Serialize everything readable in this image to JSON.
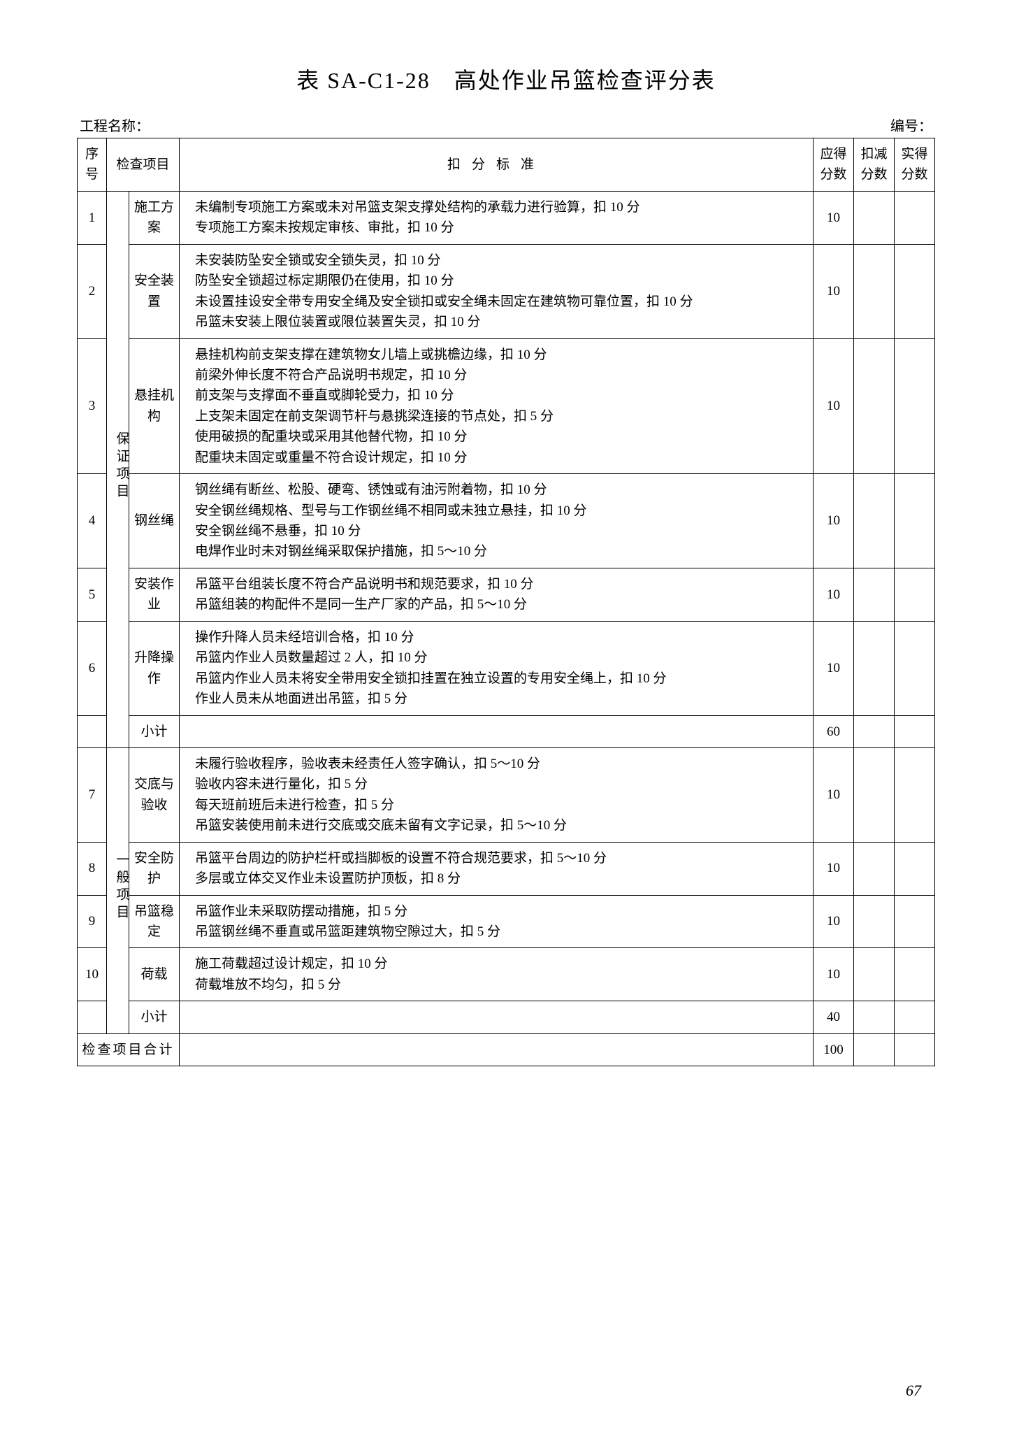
{
  "title": "表 SA-C1-28　高处作业吊篮检查评分表",
  "meta": {
    "project_label": "工程名称：",
    "number_label": "编号："
  },
  "headers": {
    "seq": "序号",
    "check_item": "检查项目",
    "criteria": "扣分标准",
    "max_score": "应得分数",
    "deduct": "扣减分数",
    "actual": "实得分数"
  },
  "group1_label": "保证项目",
  "group2_label": "一般项目",
  "rows": [
    {
      "seq": "1",
      "item": "施工方案",
      "criteria": [
        "未编制专项施工方案或未对吊篮支架支撑处结构的承载力进行验算，扣 10 分",
        "专项施工方案未按规定审核、审批，扣 10 分"
      ],
      "score": "10"
    },
    {
      "seq": "2",
      "item": "安全装置",
      "criteria": [
        "未安装防坠安全锁或安全锁失灵，扣 10 分",
        "防坠安全锁超过标定期限仍在使用，扣 10 分",
        "未设置挂设安全带专用安全绳及安全锁扣或安全绳未固定在建筑物可靠位置，扣 10 分",
        "吊篮未安装上限位装置或限位装置失灵，扣 10 分"
      ],
      "score": "10"
    },
    {
      "seq": "3",
      "item": "悬挂机构",
      "criteria": [
        "悬挂机构前支架支撑在建筑物女儿墙上或挑檐边缘，扣 10 分",
        "前梁外伸长度不符合产品说明书规定，扣 10 分",
        "前支架与支撑面不垂直或脚轮受力，扣 10 分",
        "上支架未固定在前支架调节杆与悬挑梁连接的节点处，扣 5 分",
        "使用破损的配重块或采用其他替代物，扣 10 分",
        "配重块未固定或重量不符合设计规定，扣 10 分"
      ],
      "score": "10"
    },
    {
      "seq": "4",
      "item": "钢丝绳",
      "criteria": [
        "钢丝绳有断丝、松股、硬弯、锈蚀或有油污附着物，扣 10 分",
        "安全钢丝绳规格、型号与工作钢丝绳不相同或未独立悬挂，扣 10 分",
        "安全钢丝绳不悬垂，扣 10 分",
        "电焊作业时未对钢丝绳采取保护措施，扣 5～10 分"
      ],
      "score": "10"
    },
    {
      "seq": "5",
      "item": "安装作业",
      "criteria": [
        "吊篮平台组装长度不符合产品说明书和规范要求，扣 10 分",
        "吊篮组装的构配件不是同一生产厂家的产品，扣 5～10 分"
      ],
      "score": "10"
    },
    {
      "seq": "6",
      "item": "升降操作",
      "criteria": [
        "操作升降人员未经培训合格，扣 10 分",
        "吊篮内作业人员数量超过 2 人，扣 10 分",
        "吊篮内作业人员未将安全带用安全锁扣挂置在独立设置的专用安全绳上，扣 10 分",
        "作业人员未从地面进出吊篮，扣 5 分"
      ],
      "score": "10"
    }
  ],
  "subtotal1": {
    "label": "小计",
    "score": "60"
  },
  "rows2": [
    {
      "seq": "7",
      "item": "交底与验收",
      "criteria": [
        "未履行验收程序，验收表未经责任人签字确认，扣 5～10 分",
        "验收内容未进行量化，扣 5 分",
        "每天班前班后未进行检查，扣 5 分",
        "吊篮安装使用前未进行交底或交底未留有文字记录，扣 5～10 分"
      ],
      "score": "10"
    },
    {
      "seq": "8",
      "item": "安全防护",
      "criteria": [
        "吊篮平台周边的防护栏杆或挡脚板的设置不符合规范要求，扣 5～10 分",
        "多层或立体交叉作业未设置防护顶板，扣 8 分"
      ],
      "score": "10"
    },
    {
      "seq": "9",
      "item": "吊篮稳定",
      "criteria": [
        "吊篮作业未采取防摆动措施，扣 5 分",
        "吊篮钢丝绳不垂直或吊篮距建筑物空隙过大，扣 5 分"
      ],
      "score": "10"
    },
    {
      "seq": "10",
      "item": "荷载",
      "criteria": [
        "施工荷载超过设计规定，扣 10 分",
        "荷载堆放不均匀，扣 5 分"
      ],
      "score": "10"
    }
  ],
  "subtotal2": {
    "label": "小计",
    "score": "40"
  },
  "total": {
    "label": "检查项目合计",
    "score": "100"
  },
  "page_number": "67"
}
